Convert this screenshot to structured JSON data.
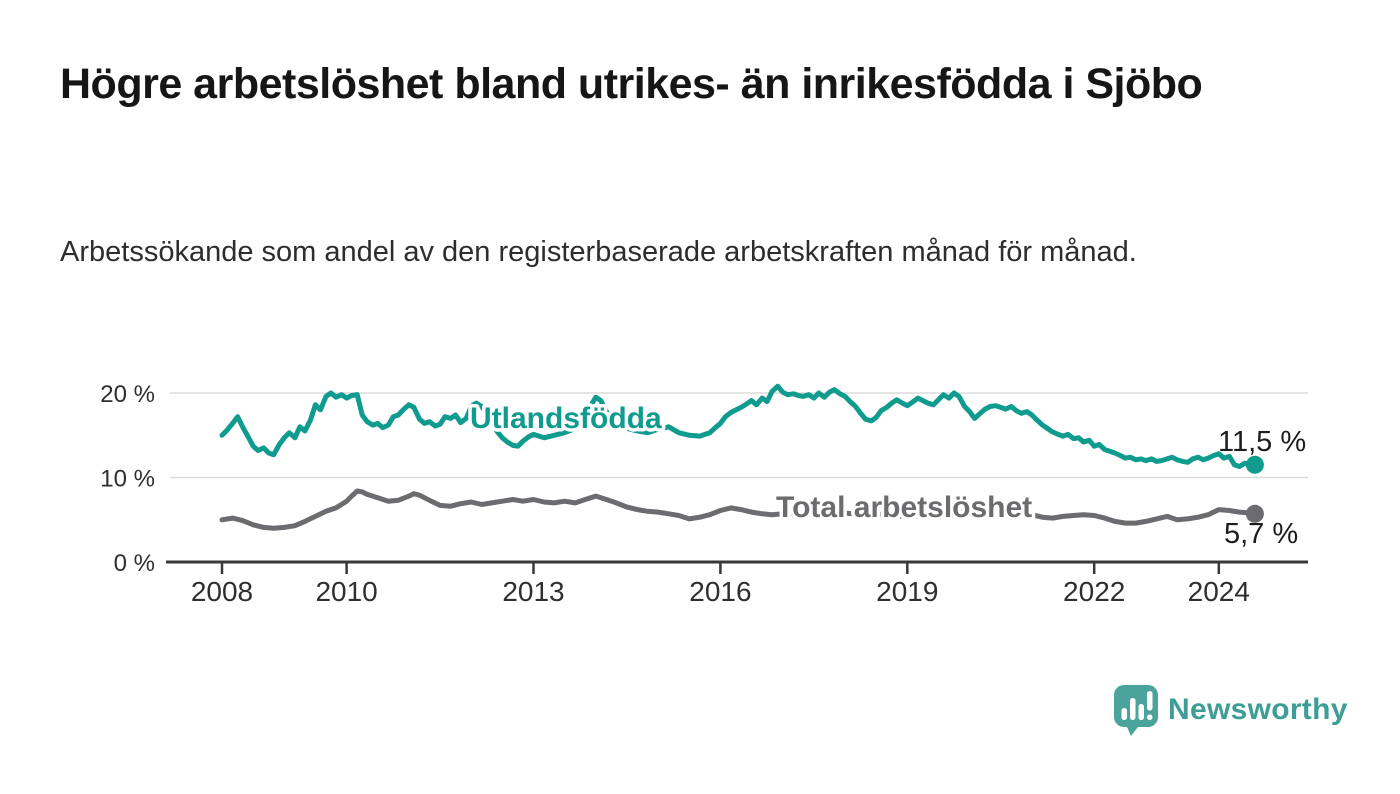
{
  "header": {
    "title": "Högre arbetslöshet bland utrikes- än inrikesfödda i Sjöbo",
    "subtitle": "Arbetssökande som andel av den registerbaserade arbetskraften månad för månad."
  },
  "chart_data": {
    "type": "line",
    "title": "Högre arbetslöshet bland utrikes- än inrikesfödda i Sjöbo",
    "subtitle": "Arbetssökande som andel av den registerbaserade arbetskraften månad för månad.",
    "unit": "%",
    "grid": true,
    "legend_position": "inline-labels",
    "grid_color": "#dcdcdc",
    "axis_color": "#38383a",
    "axis_text_color": "#2f2f31",
    "value_label_color": "#1d1d1d",
    "x_axis": {
      "range": [
        2007.1,
        2025.4
      ],
      "ticks": [
        {
          "value": 2008,
          "label": "2008"
        },
        {
          "value": 2010,
          "label": "2010"
        },
        {
          "value": 2013,
          "label": "2013"
        },
        {
          "value": 2016,
          "label": "2016"
        },
        {
          "value": 2019,
          "label": "2019"
        },
        {
          "value": 2022,
          "label": "2022"
        },
        {
          "value": 2024,
          "label": "2024"
        }
      ]
    },
    "y_axis": {
      "range": [
        0,
        22
      ],
      "ticks": [
        {
          "value": 0,
          "label": "0 %"
        },
        {
          "value": 10,
          "label": "10 %"
        },
        {
          "value": 20,
          "label": "20 %"
        }
      ]
    },
    "series": [
      {
        "id": "utlandsfodda",
        "name": "Utlandsfödda",
        "color": "#0F9B8E",
        "end_value": 11.5,
        "end_label": "11,5 %",
        "points": [
          [
            2008.0,
            15.0
          ],
          [
            2008.08,
            15.6
          ],
          [
            2008.17,
            16.4
          ],
          [
            2008.25,
            17.2
          ],
          [
            2008.33,
            16.0
          ],
          [
            2008.42,
            14.8
          ],
          [
            2008.5,
            13.7
          ],
          [
            2008.58,
            13.2
          ],
          [
            2008.67,
            13.5
          ],
          [
            2008.75,
            12.9
          ],
          [
            2008.83,
            12.7
          ],
          [
            2008.92,
            13.9
          ],
          [
            2009.0,
            14.7
          ],
          [
            2009.08,
            15.3
          ],
          [
            2009.17,
            14.7
          ],
          [
            2009.25,
            16.0
          ],
          [
            2009.33,
            15.5
          ],
          [
            2009.42,
            16.8
          ],
          [
            2009.5,
            18.6
          ],
          [
            2009.58,
            18.0
          ],
          [
            2009.67,
            19.6
          ],
          [
            2009.75,
            20.0
          ],
          [
            2009.83,
            19.5
          ],
          [
            2009.92,
            19.8
          ],
          [
            2010.0,
            19.4
          ],
          [
            2010.08,
            19.7
          ],
          [
            2010.17,
            19.8
          ],
          [
            2010.25,
            17.4
          ],
          [
            2010.33,
            16.6
          ],
          [
            2010.42,
            16.2
          ],
          [
            2010.5,
            16.4
          ],
          [
            2010.58,
            15.9
          ],
          [
            2010.67,
            16.2
          ],
          [
            2010.75,
            17.2
          ],
          [
            2010.83,
            17.4
          ],
          [
            2010.92,
            18.1
          ],
          [
            2011.0,
            18.6
          ],
          [
            2011.08,
            18.3
          ],
          [
            2011.17,
            16.9
          ],
          [
            2011.25,
            16.4
          ],
          [
            2011.33,
            16.6
          ],
          [
            2011.42,
            16.1
          ],
          [
            2011.5,
            16.3
          ],
          [
            2011.58,
            17.2
          ],
          [
            2011.67,
            17.0
          ],
          [
            2011.75,
            17.4
          ],
          [
            2011.83,
            16.5
          ],
          [
            2011.92,
            17.0
          ],
          [
            2012.0,
            18.4
          ],
          [
            2012.08,
            18.8
          ],
          [
            2012.17,
            18.4
          ],
          [
            2012.25,
            17.5
          ],
          [
            2012.33,
            16.5
          ],
          [
            2012.42,
            15.4
          ],
          [
            2012.5,
            14.7
          ],
          [
            2012.58,
            14.2
          ],
          [
            2012.67,
            13.8
          ],
          [
            2012.75,
            13.7
          ],
          [
            2012.83,
            14.3
          ],
          [
            2012.92,
            14.8
          ],
          [
            2013.0,
            15.1
          ],
          [
            2013.17,
            14.7
          ],
          [
            2013.33,
            15.0
          ],
          [
            2013.5,
            15.3
          ],
          [
            2013.67,
            15.8
          ],
          [
            2013.83,
            17.1
          ],
          [
            2013.92,
            18.5
          ],
          [
            2014.0,
            19.5
          ],
          [
            2014.08,
            19.1
          ],
          [
            2014.17,
            17.8
          ],
          [
            2014.25,
            16.6
          ],
          [
            2014.33,
            16.0
          ],
          [
            2014.5,
            15.8
          ],
          [
            2014.67,
            15.5
          ],
          [
            2014.83,
            15.3
          ],
          [
            2015.0,
            15.7
          ],
          [
            2015.17,
            16.0
          ],
          [
            2015.33,
            15.3
          ],
          [
            2015.5,
            15.0
          ],
          [
            2015.67,
            14.9
          ],
          [
            2015.83,
            15.3
          ],
          [
            2015.92,
            15.9
          ],
          [
            2016.0,
            16.4
          ],
          [
            2016.08,
            17.2
          ],
          [
            2016.17,
            17.7
          ],
          [
            2016.25,
            18.0
          ],
          [
            2016.33,
            18.3
          ],
          [
            2016.42,
            18.7
          ],
          [
            2016.5,
            19.1
          ],
          [
            2016.58,
            18.6
          ],
          [
            2016.67,
            19.4
          ],
          [
            2016.75,
            19.0
          ],
          [
            2016.83,
            20.2
          ],
          [
            2016.92,
            20.8
          ],
          [
            2017.0,
            20.1
          ],
          [
            2017.08,
            19.8
          ],
          [
            2017.17,
            19.9
          ],
          [
            2017.25,
            19.7
          ],
          [
            2017.33,
            19.6
          ],
          [
            2017.42,
            19.8
          ],
          [
            2017.5,
            19.4
          ],
          [
            2017.58,
            20.0
          ],
          [
            2017.67,
            19.5
          ],
          [
            2017.75,
            20.1
          ],
          [
            2017.83,
            20.4
          ],
          [
            2017.92,
            19.9
          ],
          [
            2018.0,
            19.6
          ],
          [
            2018.08,
            19.0
          ],
          [
            2018.17,
            18.4
          ],
          [
            2018.25,
            17.6
          ],
          [
            2018.33,
            16.9
          ],
          [
            2018.42,
            16.7
          ],
          [
            2018.5,
            17.1
          ],
          [
            2018.58,
            17.9
          ],
          [
            2018.67,
            18.3
          ],
          [
            2018.75,
            18.8
          ],
          [
            2018.83,
            19.2
          ],
          [
            2018.92,
            18.8
          ],
          [
            2019.0,
            18.5
          ],
          [
            2019.08,
            18.9
          ],
          [
            2019.17,
            19.4
          ],
          [
            2019.25,
            19.1
          ],
          [
            2019.33,
            18.8
          ],
          [
            2019.42,
            18.6
          ],
          [
            2019.5,
            19.2
          ],
          [
            2019.58,
            19.8
          ],
          [
            2019.67,
            19.4
          ],
          [
            2019.75,
            20.0
          ],
          [
            2019.83,
            19.6
          ],
          [
            2019.92,
            18.4
          ],
          [
            2020.0,
            17.8
          ],
          [
            2020.08,
            17.0
          ],
          [
            2020.17,
            17.6
          ],
          [
            2020.25,
            18.1
          ],
          [
            2020.33,
            18.4
          ],
          [
            2020.42,
            18.5
          ],
          [
            2020.5,
            18.3
          ],
          [
            2020.58,
            18.1
          ],
          [
            2020.67,
            18.4
          ],
          [
            2020.75,
            17.9
          ],
          [
            2020.83,
            17.6
          ],
          [
            2020.92,
            17.8
          ],
          [
            2021.0,
            17.4
          ],
          [
            2021.08,
            16.8
          ],
          [
            2021.17,
            16.2
          ],
          [
            2021.25,
            15.8
          ],
          [
            2021.33,
            15.4
          ],
          [
            2021.42,
            15.1
          ],
          [
            2021.5,
            14.9
          ],
          [
            2021.58,
            15.1
          ],
          [
            2021.67,
            14.6
          ],
          [
            2021.75,
            14.7
          ],
          [
            2021.83,
            14.2
          ],
          [
            2021.92,
            14.4
          ],
          [
            2022.0,
            13.7
          ],
          [
            2022.08,
            13.9
          ],
          [
            2022.17,
            13.3
          ],
          [
            2022.25,
            13.1
          ],
          [
            2022.33,
            12.9
          ],
          [
            2022.42,
            12.6
          ],
          [
            2022.5,
            12.3
          ],
          [
            2022.58,
            12.4
          ],
          [
            2022.67,
            12.1
          ],
          [
            2022.75,
            12.2
          ],
          [
            2022.83,
            12.0
          ],
          [
            2022.92,
            12.2
          ],
          [
            2023.0,
            11.9
          ],
          [
            2023.08,
            12.0
          ],
          [
            2023.17,
            12.2
          ],
          [
            2023.25,
            12.4
          ],
          [
            2023.33,
            12.1
          ],
          [
            2023.42,
            11.9
          ],
          [
            2023.5,
            11.8
          ],
          [
            2023.58,
            12.2
          ],
          [
            2023.67,
            12.4
          ],
          [
            2023.75,
            12.1
          ],
          [
            2023.83,
            12.3
          ],
          [
            2023.92,
            12.6
          ],
          [
            2024.0,
            12.8
          ],
          [
            2024.08,
            12.3
          ],
          [
            2024.17,
            12.5
          ],
          [
            2024.25,
            11.5
          ],
          [
            2024.33,
            11.3
          ],
          [
            2024.42,
            11.7
          ],
          [
            2024.5,
            11.4
          ],
          [
            2024.58,
            11.5
          ]
        ]
      },
      {
        "id": "total-arbetsloshet",
        "name": "Total arbetslöshet",
        "color": "#6B6B70",
        "end_value": 5.7,
        "end_label": "5,7 %",
        "points": [
          [
            2008.0,
            5.0
          ],
          [
            2008.17,
            5.2
          ],
          [
            2008.33,
            4.9
          ],
          [
            2008.5,
            4.4
          ],
          [
            2008.67,
            4.1
          ],
          [
            2008.83,
            4.0
          ],
          [
            2009.0,
            4.1
          ],
          [
            2009.17,
            4.3
          ],
          [
            2009.33,
            4.8
          ],
          [
            2009.5,
            5.4
          ],
          [
            2009.67,
            6.0
          ],
          [
            2009.83,
            6.4
          ],
          [
            2010.0,
            7.2
          ],
          [
            2010.08,
            7.8
          ],
          [
            2010.17,
            8.4
          ],
          [
            2010.25,
            8.3
          ],
          [
            2010.33,
            8.0
          ],
          [
            2010.5,
            7.6
          ],
          [
            2010.67,
            7.2
          ],
          [
            2010.83,
            7.3
          ],
          [
            2011.0,
            7.8
          ],
          [
            2011.08,
            8.1
          ],
          [
            2011.17,
            7.9
          ],
          [
            2011.33,
            7.3
          ],
          [
            2011.5,
            6.7
          ],
          [
            2011.67,
            6.6
          ],
          [
            2011.83,
            6.9
          ],
          [
            2012.0,
            7.1
          ],
          [
            2012.17,
            6.8
          ],
          [
            2012.33,
            7.0
          ],
          [
            2012.5,
            7.2
          ],
          [
            2012.67,
            7.4
          ],
          [
            2012.83,
            7.2
          ],
          [
            2013.0,
            7.4
          ],
          [
            2013.17,
            7.1
          ],
          [
            2013.33,
            7.0
          ],
          [
            2013.5,
            7.2
          ],
          [
            2013.67,
            7.0
          ],
          [
            2013.83,
            7.4
          ],
          [
            2014.0,
            7.8
          ],
          [
            2014.17,
            7.4
          ],
          [
            2014.33,
            7.0
          ],
          [
            2014.5,
            6.5
          ],
          [
            2014.67,
            6.2
          ],
          [
            2014.83,
            6.0
          ],
          [
            2015.0,
            5.9
          ],
          [
            2015.17,
            5.7
          ],
          [
            2015.33,
            5.5
          ],
          [
            2015.5,
            5.1
          ],
          [
            2015.67,
            5.3
          ],
          [
            2015.83,
            5.6
          ],
          [
            2016.0,
            6.1
          ],
          [
            2016.17,
            6.4
          ],
          [
            2016.33,
            6.2
          ],
          [
            2016.5,
            5.9
          ],
          [
            2016.67,
            5.7
          ],
          [
            2016.83,
            5.6
          ],
          [
            2017.0,
            5.7
          ],
          [
            2017.25,
            5.8
          ],
          [
            2017.5,
            6.0
          ],
          [
            2017.75,
            5.9
          ],
          [
            2018.0,
            5.8
          ],
          [
            2018.25,
            5.6
          ],
          [
            2018.5,
            5.7
          ],
          [
            2018.75,
            5.5
          ],
          [
            2019.0,
            5.4
          ],
          [
            2019.25,
            5.5
          ],
          [
            2019.5,
            5.7
          ],
          [
            2019.75,
            5.9
          ],
          [
            2020.0,
            6.1
          ],
          [
            2020.25,
            6.4
          ],
          [
            2020.5,
            6.3
          ],
          [
            2020.75,
            6.0
          ],
          [
            2021.0,
            5.6
          ],
          [
            2021.17,
            5.3
          ],
          [
            2021.33,
            5.2
          ],
          [
            2021.5,
            5.4
          ],
          [
            2021.67,
            5.5
          ],
          [
            2021.83,
            5.6
          ],
          [
            2022.0,
            5.5
          ],
          [
            2022.17,
            5.2
          ],
          [
            2022.33,
            4.8
          ],
          [
            2022.5,
            4.6
          ],
          [
            2022.67,
            4.6
          ],
          [
            2022.83,
            4.8
          ],
          [
            2023.0,
            5.1
          ],
          [
            2023.17,
            5.4
          ],
          [
            2023.33,
            5.0
          ],
          [
            2023.5,
            5.1
          ],
          [
            2023.67,
            5.3
          ],
          [
            2023.83,
            5.6
          ],
          [
            2024.0,
            6.2
          ],
          [
            2024.17,
            6.1
          ],
          [
            2024.33,
            5.9
          ],
          [
            2024.5,
            5.8
          ],
          [
            2024.58,
            5.7
          ]
        ]
      }
    ]
  },
  "footer": {
    "brand": "Newsworthy",
    "brand_color": "#3E9E96",
    "icon": "newsworthy-speech-bubble-chart-icon",
    "icon_color": "#4BA49B"
  }
}
